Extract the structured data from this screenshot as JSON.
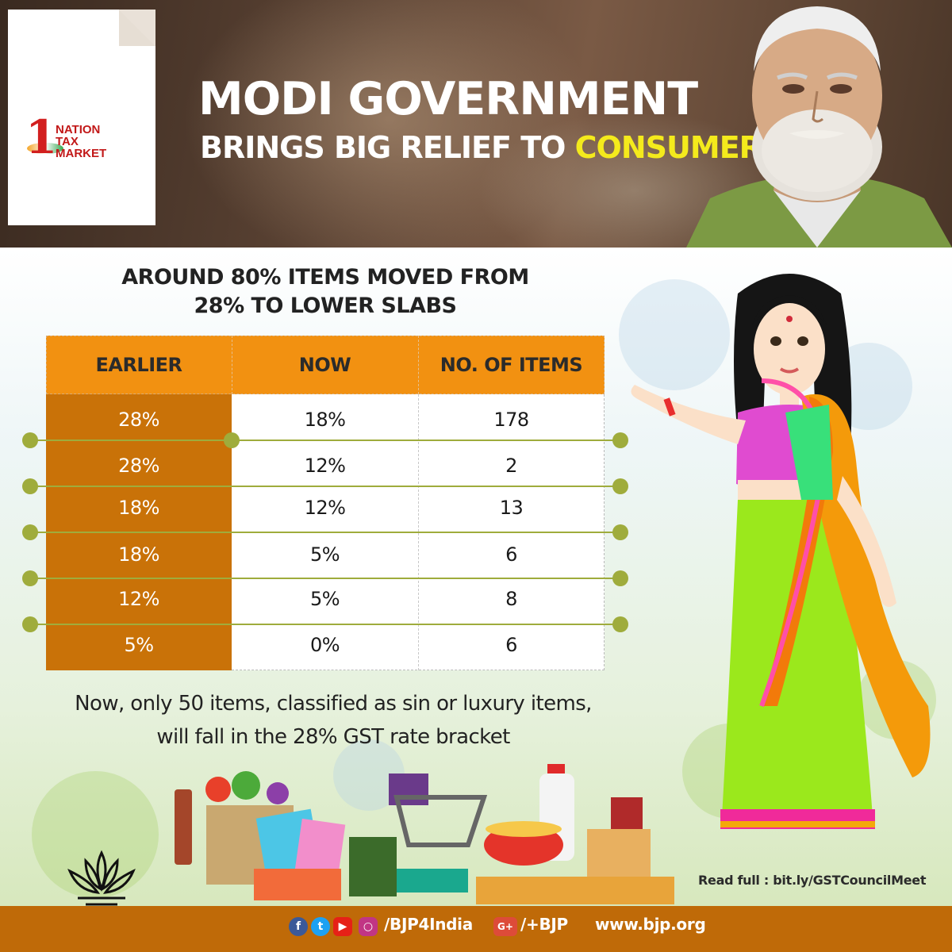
{
  "header": {
    "logo": {
      "digit": "1",
      "words": [
        "NATION",
        "TAX",
        "MARKET"
      ]
    },
    "title_line1": "MODI GOVERNMENT",
    "title_line2_prefix": "BRINGS BIG RELIEF TO ",
    "title_line2_highlight": "CONSUMERS"
  },
  "main": {
    "subtitle_line1": "AROUND 80% ITEMS MOVED FROM",
    "subtitle_line2": "28% TO LOWER SLABS",
    "table": {
      "columns": [
        "EARLIER",
        "NOW",
        "NO. OF ITEMS"
      ],
      "rows": [
        [
          "28%",
          "18%",
          "178"
        ],
        [
          "28%",
          "12%",
          "2"
        ],
        [
          "18%",
          "12%",
          "13"
        ],
        [
          "18%",
          "5%",
          "6"
        ],
        [
          "12%",
          "5%",
          "8"
        ],
        [
          "5%",
          "0%",
          "6"
        ]
      ]
    },
    "note_line1": "Now, only 50 items, classified as sin or luxury items,",
    "note_line2": "will fall in the 28% GST rate bracket",
    "read_full": "Read full : bit.ly/GSTCouncilMeet"
  },
  "footer": {
    "social_handle": "/BJP4India",
    "gplus_label": "G+",
    "gplus_handle": "/+BJP",
    "website": "www.bjp.org"
  },
  "colors": {
    "header_title": "#ffffff",
    "highlight": "#f4ea1c",
    "table_header": "#f29111",
    "earlier_column": "#c97208",
    "connector": "#9fac3c",
    "footer": "#bf6a08"
  },
  "icons": [
    "facebook-icon",
    "twitter-icon",
    "youtube-icon",
    "instagram-icon",
    "google-plus-icon",
    "lotus-icon"
  ]
}
